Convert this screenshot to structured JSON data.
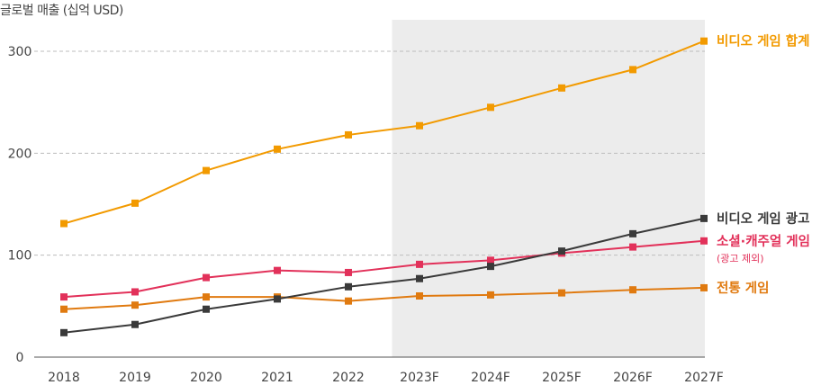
{
  "chart_data": {
    "type": "line",
    "ylabel": "글로벌 매출 (십억 USD)",
    "categories": [
      "2018",
      "2019",
      "2020",
      "2021",
      "2022",
      "2023F",
      "2024F",
      "2025F",
      "2026F",
      "2027F"
    ],
    "ylim": [
      0,
      320
    ],
    "yticks": [
      0,
      100,
      200,
      300
    ],
    "forecast_start": "2023F",
    "series": [
      {
        "name": "비디오 게임 합계",
        "sub": "",
        "color": "#f29a00",
        "values": [
          131,
          151,
          183,
          204,
          218,
          227,
          245,
          264,
          282,
          310
        ]
      },
      {
        "name": "비디오 게임 광고",
        "sub": "",
        "color": "#3a3a3a",
        "values": [
          24,
          32,
          47,
          57,
          69,
          77,
          89,
          104,
          121,
          136
        ]
      },
      {
        "name": "소셜·캐주얼 게임",
        "sub": "(광고 제외)",
        "color": "#e2315a",
        "values": [
          59,
          64,
          78,
          85,
          83,
          91,
          95,
          102,
          108,
          114
        ]
      },
      {
        "name": "전통 게임",
        "sub": "",
        "color": "#e07a10",
        "values": [
          47,
          51,
          59,
          59,
          55,
          60,
          61,
          63,
          66,
          68
        ]
      }
    ]
  }
}
